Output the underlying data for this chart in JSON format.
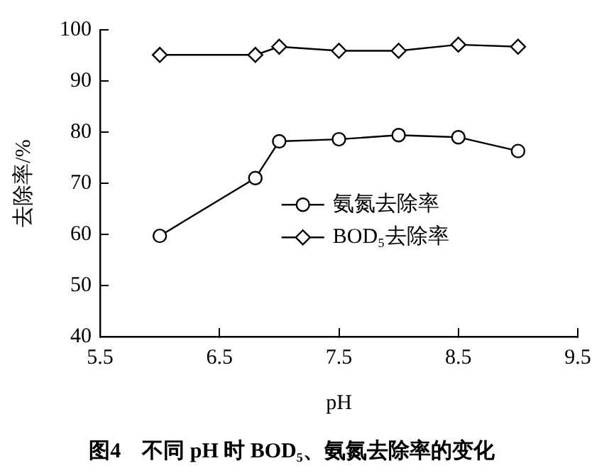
{
  "chart_data": {
    "type": "line",
    "title": "图4　不同 pH 时 BOD₅、氨氮去除率的变化",
    "xlabel": "pH",
    "ylabel": "去除率/%",
    "x": [
      6.0,
      6.8,
      7.0,
      7.5,
      8.0,
      8.5,
      9.0
    ],
    "series": [
      {
        "name": "氨氮去除率",
        "color": "#000000",
        "marker": "circle",
        "values": [
          59.7,
          71.0,
          78.2,
          78.6,
          79.4,
          79.0,
          76.3
        ]
      },
      {
        "name": "BOD₅去除率",
        "color": "#000000",
        "marker": "diamond",
        "values": [
          95.1,
          95.1,
          96.7,
          95.9,
          95.9,
          97.1,
          96.7
        ]
      }
    ],
    "xlim": [
      5.5,
      9.5
    ],
    "xticks": [
      5.5,
      6.5,
      7.5,
      8.5,
      9.5
    ],
    "ylim": [
      40,
      100
    ],
    "yticks": [
      40,
      50,
      60,
      70,
      80,
      90,
      100
    ],
    "grid": false,
    "legend": "center right",
    "line_style": "solid"
  }
}
